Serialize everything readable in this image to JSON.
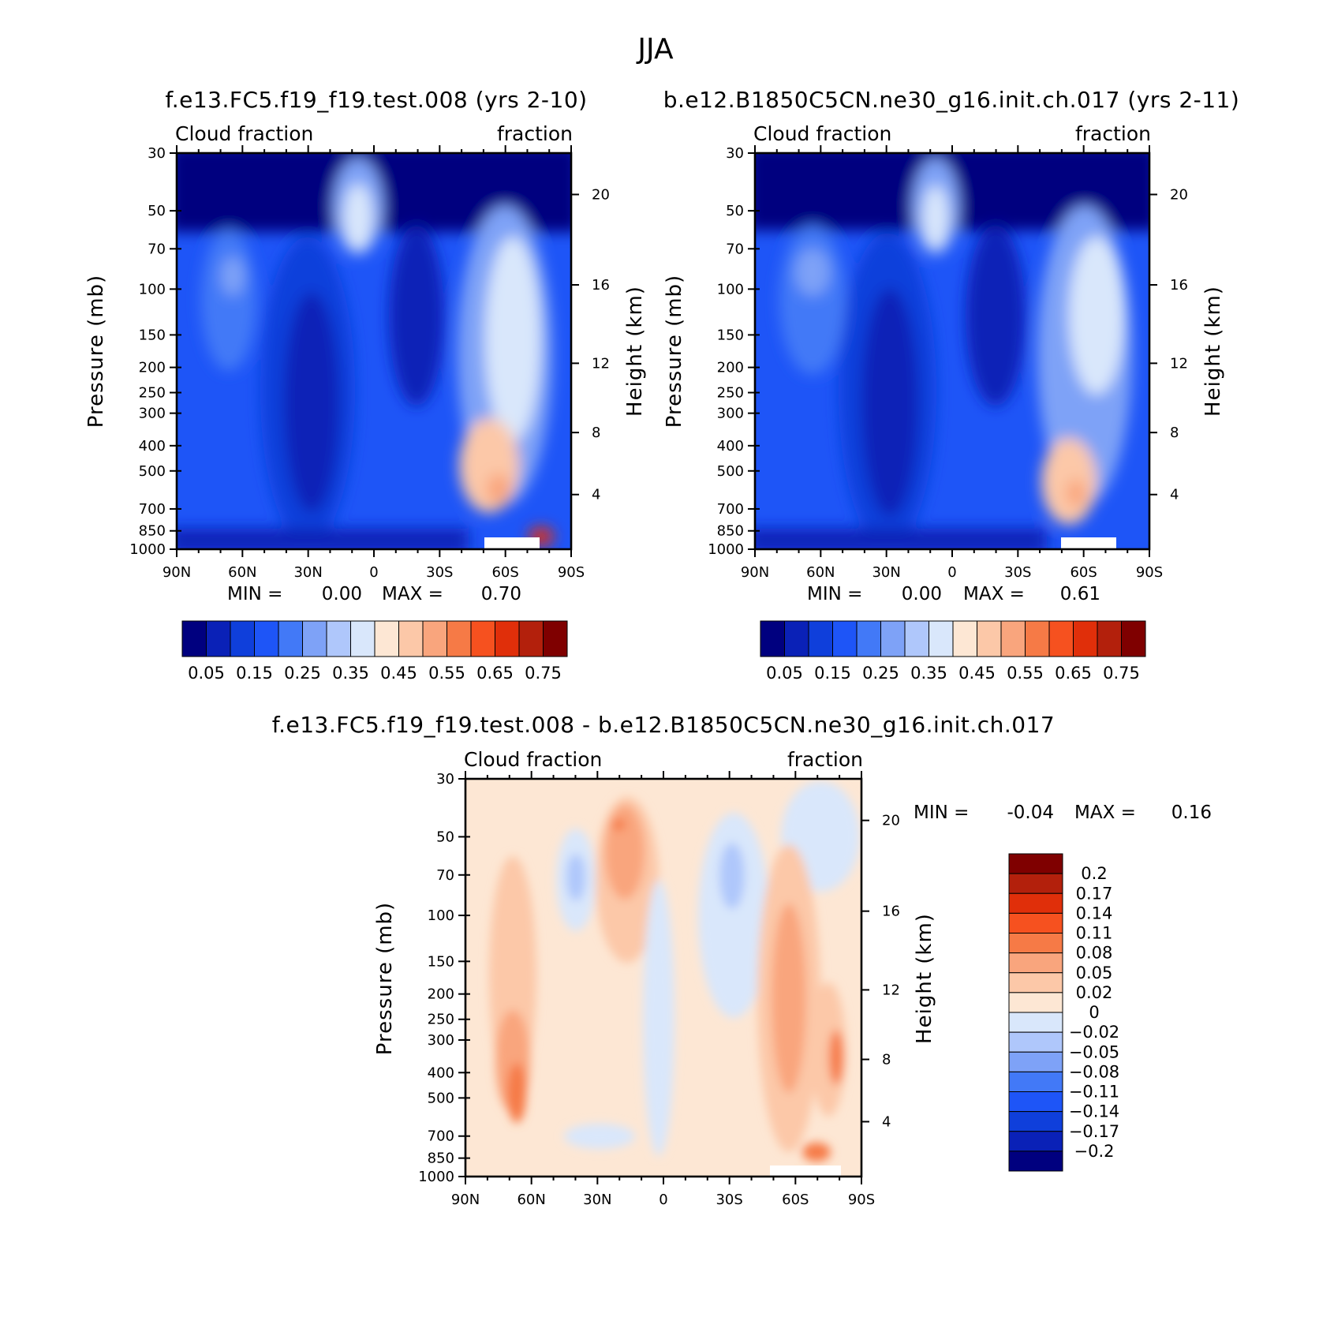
{
  "figure": {
    "title": "JJA",
    "left_panel_title": "f.e13.FC5.f19_f19.test.008 (yrs 2-10)",
    "right_panel_title": "b.e12.B1850C5CN.ne30_g16.init.ch.017 (yrs 2-11)",
    "diff_panel_title": "f.e13.FC5.f19_f19.test.008 - b.e12.B1850C5CN.ne30_g16.init.ch.017"
  },
  "chart_data": [
    {
      "type": "heatmap",
      "id": "left",
      "variable_left": "Cloud fraction",
      "variable_right": "fraction",
      "xlabel": "",
      "ylabel": "Pressure (mb)",
      "ylabel_right": "Height (km)",
      "x_ticks": [
        "90N",
        "60N",
        "30N",
        "0",
        "30S",
        "60S",
        "90S"
      ],
      "x_values": [
        90,
        60,
        30,
        0,
        -30,
        -60,
        -90
      ],
      "y_ticks": [
        30,
        50,
        70,
        100,
        150,
        200,
        250,
        300,
        400,
        500,
        700,
        850,
        1000
      ],
      "y_tick_labels": [
        "30",
        "50",
        "70",
        "100",
        "150",
        "200",
        "250",
        "300",
        "400",
        "500",
        "700",
        "850",
        "1000"
      ],
      "height_ticks": [
        20,
        16,
        12,
        8,
        4
      ],
      "min_label": "MIN =",
      "min_value": "0.00",
      "max_label": "MAX =",
      "max_value": "0.70",
      "colorbar_labels": [
        "0.05",
        "0.15",
        "0.25",
        "0.35",
        "0.45",
        "0.55",
        "0.65",
        "0.75"
      ],
      "colorbar_colors": [
        "#00007f",
        "#0a21b7",
        "#0f3fdb",
        "#1e55f7",
        "#4279f7",
        "#7ea2f7",
        "#afc7fb",
        "#d9e7fb",
        "#fde7d4",
        "#fcc8a8",
        "#f9a57d",
        "#f67a46",
        "#f6511f",
        "#e02f0a",
        "#b3200c",
        "#7f0000"
      ]
    },
    {
      "type": "heatmap",
      "id": "right",
      "variable_left": "Cloud fraction",
      "variable_right": "fraction",
      "xlabel": "",
      "ylabel": "Pressure (mb)",
      "ylabel_right": "Height (km)",
      "x_ticks": [
        "90N",
        "60N",
        "30N",
        "0",
        "30S",
        "60S",
        "90S"
      ],
      "x_values": [
        90,
        60,
        30,
        0,
        -30,
        -60,
        -90
      ],
      "y_ticks": [
        30,
        50,
        70,
        100,
        150,
        200,
        250,
        300,
        400,
        500,
        700,
        850,
        1000
      ],
      "y_tick_labels": [
        "30",
        "50",
        "70",
        "100",
        "150",
        "200",
        "250",
        "300",
        "400",
        "500",
        "700",
        "850",
        "1000"
      ],
      "height_ticks": [
        20,
        16,
        12,
        8,
        4
      ],
      "min_label": "MIN =",
      "min_value": "0.00",
      "max_label": "MAX =",
      "max_value": "0.61",
      "colorbar_labels": [
        "0.05",
        "0.15",
        "0.25",
        "0.35",
        "0.45",
        "0.55",
        "0.65",
        "0.75"
      ],
      "colorbar_colors": [
        "#00007f",
        "#0a21b7",
        "#0f3fdb",
        "#1e55f7",
        "#4279f7",
        "#7ea2f7",
        "#afc7fb",
        "#d9e7fb",
        "#fde7d4",
        "#fcc8a8",
        "#f9a57d",
        "#f67a46",
        "#f6511f",
        "#e02f0a",
        "#b3200c",
        "#7f0000"
      ]
    },
    {
      "type": "heatmap",
      "id": "diff",
      "variable_left": "Cloud fraction",
      "variable_right": "fraction",
      "xlabel": "",
      "ylabel": "Pressure (mb)",
      "ylabel_right": "Height (km)",
      "x_ticks": [
        "90N",
        "60N",
        "30N",
        "0",
        "30S",
        "60S",
        "90S"
      ],
      "x_values": [
        90,
        60,
        30,
        0,
        -30,
        -60,
        -90
      ],
      "y_ticks": [
        30,
        50,
        70,
        100,
        150,
        200,
        250,
        300,
        400,
        500,
        700,
        850,
        1000
      ],
      "y_tick_labels": [
        "30",
        "50",
        "70",
        "100",
        "150",
        "200",
        "250",
        "300",
        "400",
        "500",
        "700",
        "850",
        "1000"
      ],
      "height_ticks": [
        20,
        16,
        12,
        8,
        4
      ],
      "min_label": "MIN =",
      "min_value": "-0.04",
      "max_label": "MAX =",
      "max_value": "0.16",
      "colorbar_labels": [
        "0.2",
        "0.17",
        "0.14",
        "0.11",
        "0.08",
        "0.05",
        "0.02",
        "0",
        "-0.02",
        "-0.05",
        "-0.08",
        "-0.11",
        "-0.14",
        "-0.17",
        "-0.2"
      ],
      "colorbar_colors": [
        "#7f0000",
        "#b3200c",
        "#e02f0a",
        "#f6511f",
        "#f67a46",
        "#f9a57d",
        "#fcc8a8",
        "#fde7d4",
        "#d9e7fb",
        "#afc7fb",
        "#7ea2f7",
        "#4279f7",
        "#1e55f7",
        "#0f3fdb",
        "#0a21b7",
        "#00007f"
      ]
    }
  ]
}
